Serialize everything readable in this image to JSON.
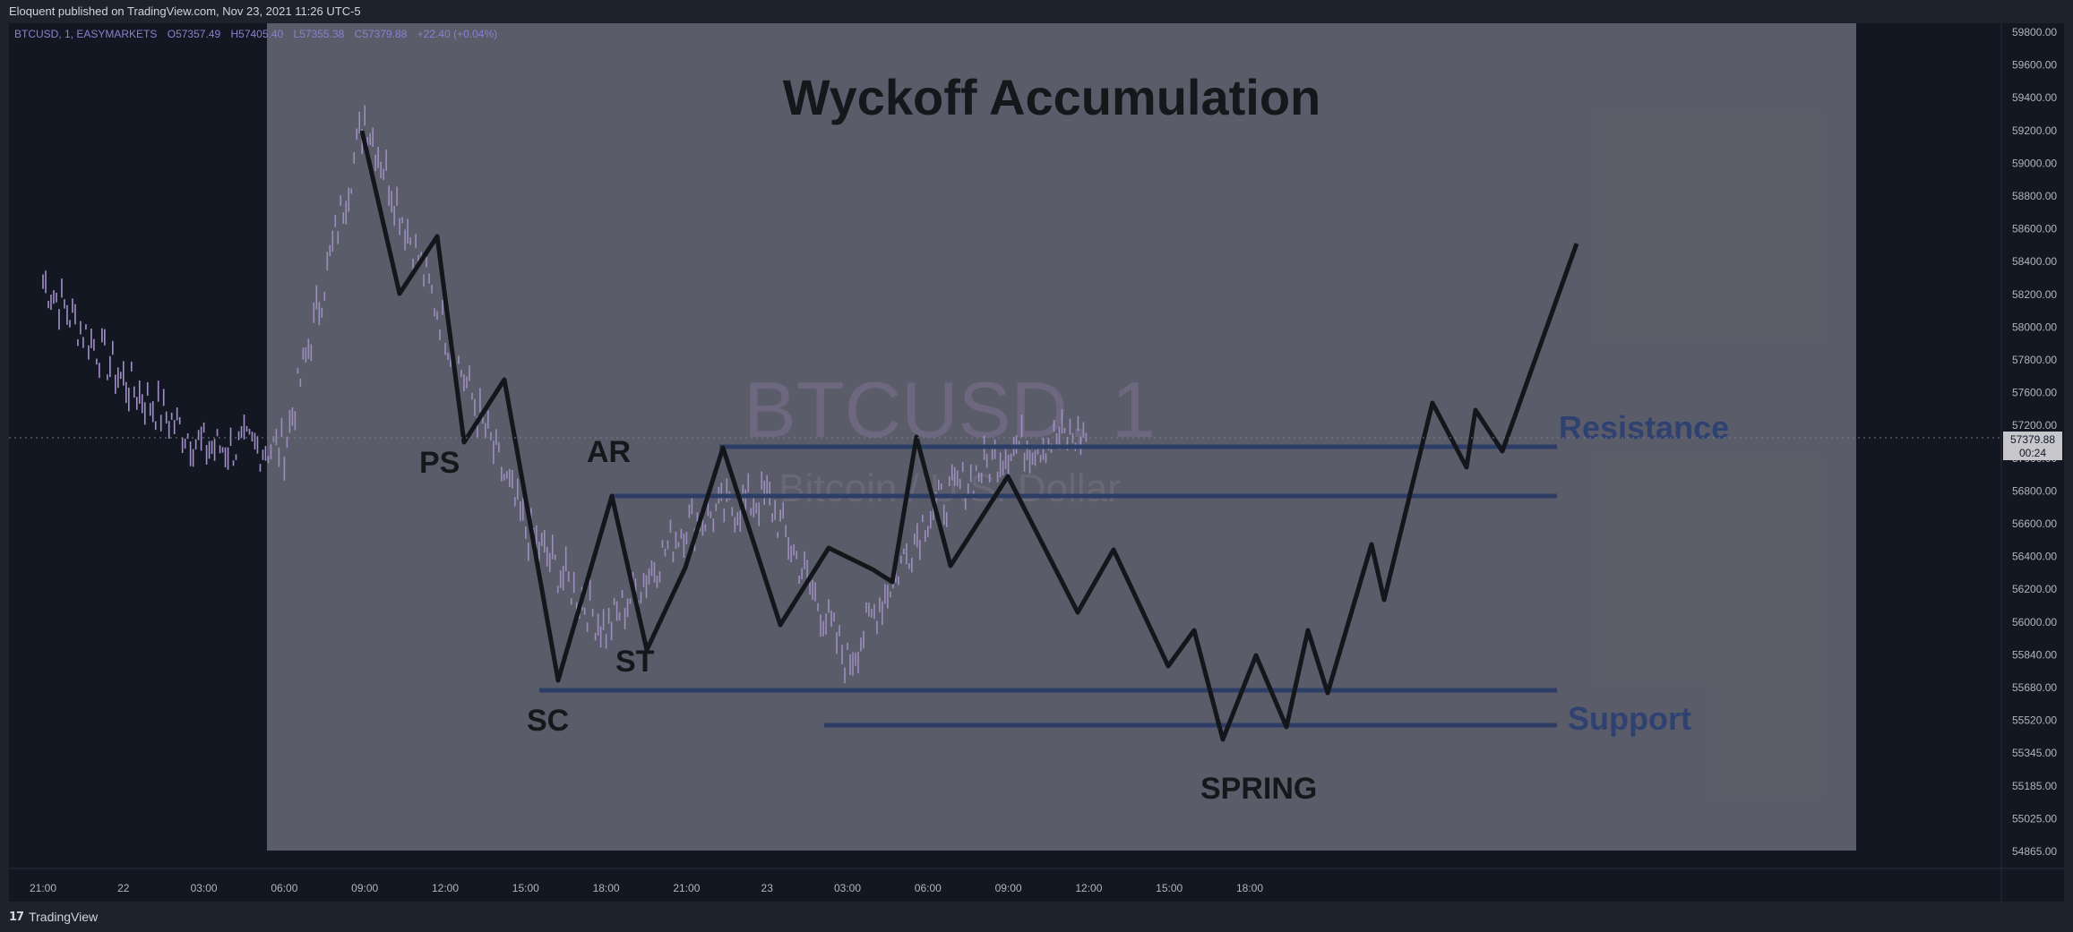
{
  "header": {
    "published": "Eloquent published on TradingView.com, Nov 23, 2021 11:26 UTC-5"
  },
  "footer": {
    "brand": "TradingView",
    "logo_icon": "tradingview-logo-icon"
  },
  "legend": {
    "symbol": "BTCUSD, 1, EASYMARKETS",
    "o_label": "O",
    "o_value": "57357.49",
    "h_label": "H",
    "h_value": "57405.40",
    "l_label": "L",
    "l_value": "57355.38",
    "c_label": "C",
    "c_value": "57379.88",
    "change": "+22.40 (+0.04%)"
  },
  "watermark": {
    "symbol": "BTCUSD, 1",
    "description": "Bitcoin / U.S. Dollar"
  },
  "overlay": {
    "title": "Wyckoff Accumulation",
    "labels": {
      "ps": "PS",
      "ar": "AR",
      "st": "ST",
      "sc": "SC",
      "spring": "SPRING",
      "resistance": "Resistance",
      "support": "Support"
    }
  },
  "price_label": {
    "value": "57379.88",
    "countdown": "00:24"
  },
  "colors": {
    "background": "#131722",
    "overlay": "#5d606b",
    "candles": "#b39ddb",
    "zone_lines": "#2c3e66",
    "zone_text": "#2e4170",
    "schematic": "#14161b"
  },
  "chart_data": {
    "type": "line",
    "title": "Wyckoff Accumulation",
    "symbol": "BTCUSD",
    "interval": "1",
    "exchange": "EASYMARKETS",
    "y_axis_ticks": [
      "59800.00",
      "59600.00",
      "59400.00",
      "59200.00",
      "59000.00",
      "58800.00",
      "58600.00",
      "58400.00",
      "58200.00",
      "58000.00",
      "57800.00",
      "57600.00",
      "57200.00",
      "57000.00",
      "56800.00",
      "56600.00",
      "56400.00",
      "56200.00",
      "56000.00",
      "55840.00",
      "55680.00",
      "55520.00",
      "55345.00",
      "55185.00",
      "55025.00",
      "54865.00"
    ],
    "x_axis_ticks": [
      "21:00",
      "22",
      "03:00",
      "06:00",
      "09:00",
      "12:00",
      "15:00",
      "18:00",
      "21:00",
      "23",
      "03:00",
      "06:00",
      "09:00",
      "12:00",
      "15:00",
      "18:00"
    ],
    "levels": {
      "resistance_upper": 57300,
      "resistance_lower": 57050,
      "support_upper": 55900,
      "support_lower": 55680
    },
    "series": [
      {
        "name": "BTCUSD, 1",
        "x": [
          "21:00",
          "22",
          "03:00",
          "06:00",
          "09:00",
          "12:00",
          "15:00",
          "18:00",
          "21:00",
          "23",
          "03:00",
          "06:00",
          "09:00",
          "12:00"
        ],
        "values": [
          58300,
          57700,
          57300,
          57300,
          59300,
          58000,
          56800,
          56200,
          56850,
          57000,
          56000,
          56900,
          57300,
          57380
        ]
      }
    ]
  }
}
